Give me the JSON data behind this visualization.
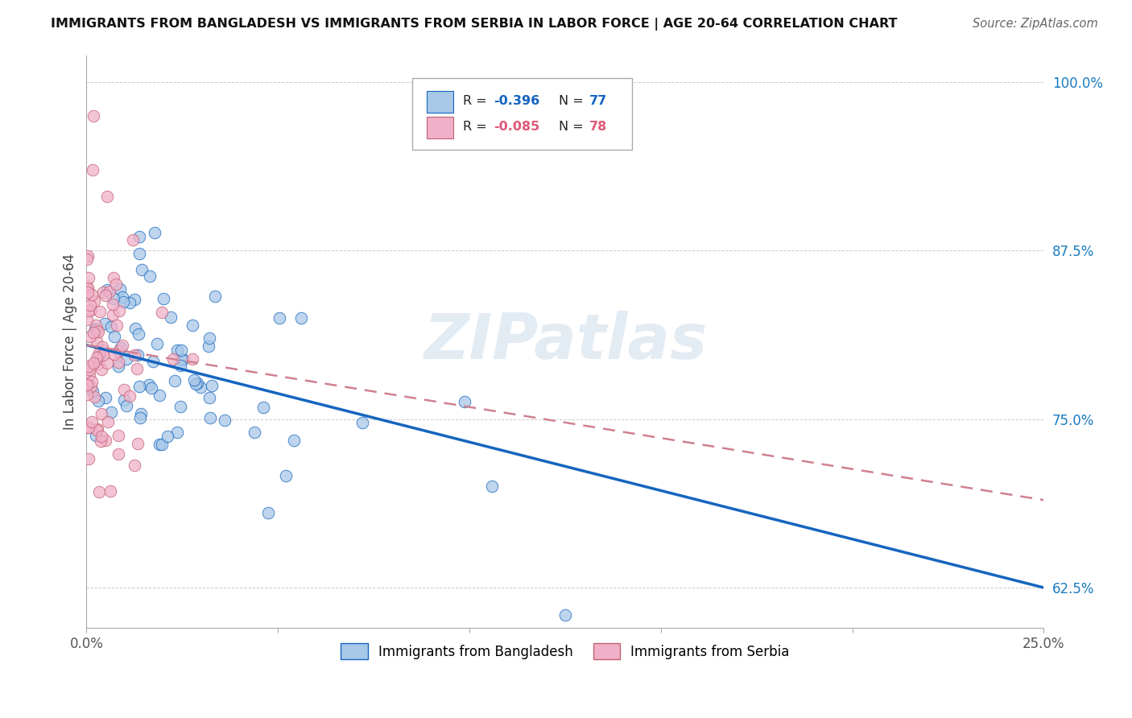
{
  "title": "IMMIGRANTS FROM BANGLADESH VS IMMIGRANTS FROM SERBIA IN LABOR FORCE | AGE 20-64 CORRELATION CHART",
  "source": "Source: ZipAtlas.com",
  "ylabel": "In Labor Force | Age 20-64",
  "legend_bangladesh": "Immigrants from Bangladesh",
  "legend_serbia": "Immigrants from Serbia",
  "legend_r_bangladesh": "-0.396",
  "legend_n_bangladesh": "77",
  "legend_r_serbia": "-0.085",
  "legend_n_serbia": "78",
  "color_bangladesh": "#a8c8e8",
  "color_serbia": "#f0b0c8",
  "color_trend_bangladesh": "#1565c0",
  "color_trend_serbia": "#d08090",
  "xlim": [
    0.0,
    0.25
  ],
  "ylim": [
    0.595,
    1.02
  ],
  "yticks": [
    0.625,
    0.75,
    0.875,
    1.0
  ],
  "ytick_labels": [
    "62.5%",
    "75.0%",
    "87.5%",
    "100.0%"
  ],
  "background_color": "#ffffff",
  "watermark": "ZIPatlas",
  "trend_b_x0": 0.0,
  "trend_b_y0": 0.805,
  "trend_b_x1": 0.25,
  "trend_b_y1": 0.625,
  "trend_s_x0": 0.0,
  "trend_s_y0": 0.805,
  "trend_s_x1": 0.25,
  "trend_s_y1": 0.69
}
